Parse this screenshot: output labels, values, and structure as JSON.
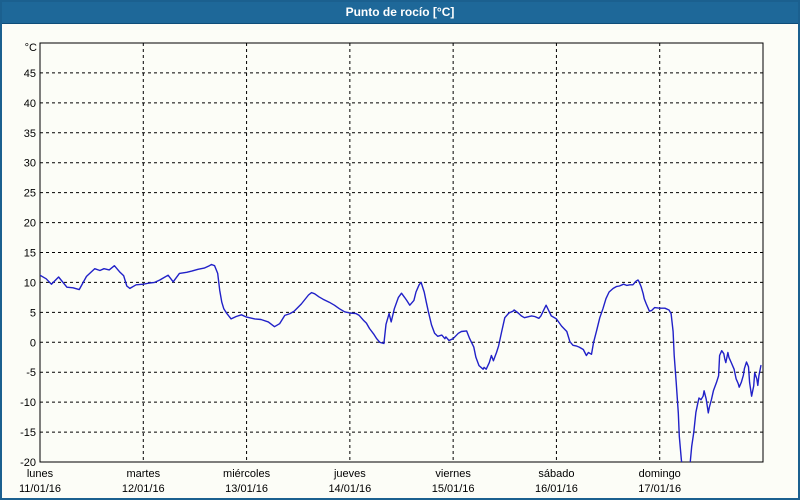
{
  "title": "Punto de rocío [°C]",
  "colors": {
    "titlebar_bg": "#1e6899",
    "titlebar_border": "#0e4d79",
    "window_border": "#1b608f",
    "background": "#fcfdf7",
    "line": "#2121c8",
    "grid": "#000000",
    "frame": "#000000",
    "text": "#000000"
  },
  "chart_data": {
    "type": "line",
    "title": "Punto de rocío [°C]",
    "ylabel": "°C",
    "ylim": [
      -20,
      50
    ],
    "y_ticks": [
      45,
      40,
      35,
      30,
      25,
      20,
      15,
      10,
      5,
      0,
      -5,
      -10,
      -15,
      -20
    ],
    "grid": "dashed",
    "legend_position": "none",
    "x_range_days": 7,
    "x_labels": [
      {
        "day": "lunes",
        "date": "11/01/16"
      },
      {
        "day": "martes",
        "date": "12/01/16"
      },
      {
        "day": "miércoles",
        "date": "13/01/16"
      },
      {
        "day": "jueves",
        "date": "14/01/16"
      },
      {
        "day": "viernes",
        "date": "15/01/16"
      },
      {
        "day": "sábado",
        "date": "16/01/16"
      },
      {
        "day": "domingo",
        "date": "17/01/16"
      }
    ],
    "series": [
      {
        "name": "Punto de rocío [°C]",
        "color": "#2121c8",
        "points": [
          [
            0,
            11.2
          ],
          [
            0.06,
            10.6
          ],
          [
            0.11,
            9.7
          ],
          [
            0.18,
            10.9
          ],
          [
            0.26,
            9.2
          ],
          [
            0.32,
            9.1
          ],
          [
            0.38,
            8.8
          ],
          [
            0.45,
            11.0
          ],
          [
            0.53,
            12.3
          ],
          [
            0.58,
            12.0
          ],
          [
            0.62,
            12.3
          ],
          [
            0.67,
            12.1
          ],
          [
            0.72,
            12.8
          ],
          [
            0.77,
            11.8
          ],
          [
            0.81,
            11.1
          ],
          [
            0.84,
            9.4
          ],
          [
            0.87,
            9.0
          ],
          [
            0.93,
            9.6
          ],
          [
            1.0,
            9.7
          ],
          [
            1.06,
            9.9
          ],
          [
            1.11,
            10.0
          ],
          [
            1.16,
            10.4
          ],
          [
            1.2,
            10.8
          ],
          [
            1.24,
            11.2
          ],
          [
            1.29,
            10.1
          ],
          [
            1.35,
            11.5
          ],
          [
            1.42,
            11.7
          ],
          [
            1.47,
            11.9
          ],
          [
            1.53,
            12.2
          ],
          [
            1.59,
            12.4
          ],
          [
            1.64,
            12.8
          ],
          [
            1.66,
            13.0
          ],
          [
            1.69,
            12.8
          ],
          [
            1.72,
            11.5
          ],
          [
            1.74,
            8.7
          ],
          [
            1.76,
            6.7
          ],
          [
            1.78,
            5.6
          ],
          [
            1.81,
            4.8
          ],
          [
            1.85,
            3.9
          ],
          [
            1.9,
            4.3
          ],
          [
            1.95,
            4.6
          ],
          [
            2.0,
            4.2
          ],
          [
            2.08,
            3.9
          ],
          [
            2.14,
            3.8
          ],
          [
            2.21,
            3.4
          ],
          [
            2.27,
            2.6
          ],
          [
            2.32,
            3.1
          ],
          [
            2.37,
            4.5
          ],
          [
            2.42,
            4.8
          ],
          [
            2.46,
            5.2
          ],
          [
            2.53,
            6.4
          ],
          [
            2.6,
            7.9
          ],
          [
            2.63,
            8.3
          ],
          [
            2.66,
            8.1
          ],
          [
            2.7,
            7.6
          ],
          [
            2.74,
            7.2
          ],
          [
            2.8,
            6.7
          ],
          [
            2.85,
            6.2
          ],
          [
            2.9,
            5.6
          ],
          [
            2.95,
            5.1
          ],
          [
            3.0,
            4.9
          ],
          [
            3.06,
            4.8
          ],
          [
            3.09,
            4.5
          ],
          [
            3.13,
            3.7
          ],
          [
            3.16,
            3.2
          ],
          [
            3.19,
            2.3
          ],
          [
            3.23,
            1.4
          ],
          [
            3.26,
            0.6
          ],
          [
            3.29,
            0.0
          ],
          [
            3.33,
            -0.2
          ],
          [
            3.35,
            3.0
          ],
          [
            3.38,
            4.8
          ],
          [
            3.4,
            3.4
          ],
          [
            3.43,
            5.6
          ],
          [
            3.47,
            7.5
          ],
          [
            3.5,
            8.2
          ],
          [
            3.53,
            7.5
          ],
          [
            3.55,
            7.0
          ],
          [
            3.58,
            6.2
          ],
          [
            3.62,
            7.0
          ],
          [
            3.64,
            8.4
          ],
          [
            3.67,
            9.6
          ],
          [
            3.69,
            10.0
          ],
          [
            3.72,
            8.4
          ],
          [
            3.74,
            6.7
          ],
          [
            3.76,
            5.1
          ],
          [
            3.79,
            2.9
          ],
          [
            3.82,
            1.5
          ],
          [
            3.85,
            1.0
          ],
          [
            3.89,
            1.2
          ],
          [
            3.92,
            0.6
          ],
          [
            3.93,
            0.9
          ],
          [
            3.96,
            0.3
          ],
          [
            4.0,
            0.6
          ],
          [
            4.05,
            1.5
          ],
          [
            4.08,
            1.8
          ],
          [
            4.13,
            1.9
          ],
          [
            4.16,
            0.6
          ],
          [
            4.2,
            -0.8
          ],
          [
            4.22,
            -2.5
          ],
          [
            4.25,
            -3.9
          ],
          [
            4.29,
            -4.5
          ],
          [
            4.3,
            -4.2
          ],
          [
            4.32,
            -4.5
          ],
          [
            4.35,
            -3.4
          ],
          [
            4.37,
            -2.2
          ],
          [
            4.39,
            -3.1
          ],
          [
            4.42,
            -1.7
          ],
          [
            4.44,
            -0.6
          ],
          [
            4.47,
            1.8
          ],
          [
            4.5,
            4.1
          ],
          [
            4.54,
            4.9
          ],
          [
            4.58,
            5.2
          ],
          [
            4.59,
            5.4
          ],
          [
            4.63,
            4.9
          ],
          [
            4.66,
            4.4
          ],
          [
            4.69,
            4.1
          ],
          [
            4.76,
            4.4
          ],
          [
            4.79,
            4.3
          ],
          [
            4.83,
            4.0
          ],
          [
            4.85,
            4.4
          ],
          [
            4.88,
            5.5
          ],
          [
            4.9,
            6.2
          ],
          [
            4.95,
            4.4
          ],
          [
            5.0,
            3.9
          ],
          [
            5.05,
            2.7
          ],
          [
            5.1,
            1.8
          ],
          [
            5.13,
            0.1
          ],
          [
            5.16,
            -0.5
          ],
          [
            5.19,
            -0.6
          ],
          [
            5.22,
            -0.8
          ],
          [
            5.26,
            -1.2
          ],
          [
            5.29,
            -2.2
          ],
          [
            5.31,
            -1.7
          ],
          [
            5.34,
            -2.0
          ],
          [
            5.36,
            0.0
          ],
          [
            5.39,
            2.0
          ],
          [
            5.42,
            4.1
          ],
          [
            5.45,
            5.6
          ],
          [
            5.48,
            7.3
          ],
          [
            5.51,
            8.4
          ],
          [
            5.55,
            9.0
          ],
          [
            5.58,
            9.3
          ],
          [
            5.61,
            9.4
          ],
          [
            5.65,
            9.7
          ],
          [
            5.68,
            9.5
          ],
          [
            5.71,
            9.6
          ],
          [
            5.74,
            9.6
          ],
          [
            5.77,
            10.2
          ],
          [
            5.79,
            10.4
          ],
          [
            5.8,
            10.1
          ],
          [
            5.82,
            9.3
          ],
          [
            5.84,
            8.1
          ],
          [
            5.85,
            7.3
          ],
          [
            5.87,
            6.4
          ],
          [
            5.89,
            5.6
          ],
          [
            5.9,
            5.2
          ],
          [
            5.92,
            5.3
          ],
          [
            5.95,
            5.8
          ],
          [
            6.0,
            5.7
          ],
          [
            6.05,
            5.7
          ],
          [
            6.09,
            5.4
          ],
          [
            6.11,
            4.8
          ],
          [
            6.13,
            1.8
          ],
          [
            6.14,
            -2.2
          ],
          [
            6.16,
            -6.7
          ],
          [
            6.18,
            -11.8
          ],
          [
            6.19,
            -15.7
          ],
          [
            6.21,
            -19.7
          ],
          [
            6.23,
            -21.5
          ],
          [
            6.26,
            -22.5
          ],
          [
            6.29,
            -21.0
          ],
          [
            6.31,
            -17.4
          ],
          [
            6.33,
            -15.0
          ],
          [
            6.34,
            -13.4
          ],
          [
            6.35,
            -11.7
          ],
          [
            6.37,
            -10.1
          ],
          [
            6.38,
            -9.3
          ],
          [
            6.4,
            -9.6
          ],
          [
            6.42,
            -9.0
          ],
          [
            6.43,
            -8.1
          ],
          [
            6.45,
            -9.5
          ],
          [
            6.47,
            -11.8
          ],
          [
            6.48,
            -10.9
          ],
          [
            6.5,
            -9.6
          ],
          [
            6.52,
            -8.1
          ],
          [
            6.53,
            -7.6
          ],
          [
            6.55,
            -6.7
          ],
          [
            6.57,
            -5.6
          ],
          [
            6.58,
            -2.2
          ],
          [
            6.6,
            -1.4
          ],
          [
            6.62,
            -1.9
          ],
          [
            6.63,
            -2.8
          ],
          [
            6.64,
            -3.4
          ],
          [
            6.66,
            -1.7
          ],
          [
            6.67,
            -2.5
          ],
          [
            6.69,
            -3.3
          ],
          [
            6.72,
            -4.5
          ],
          [
            6.73,
            -5.3
          ],
          [
            6.74,
            -6.1
          ],
          [
            6.76,
            -6.9
          ],
          [
            6.77,
            -7.5
          ],
          [
            6.79,
            -6.7
          ],
          [
            6.81,
            -5.5
          ],
          [
            6.82,
            -4.4
          ],
          [
            6.84,
            -3.3
          ],
          [
            6.86,
            -4.1
          ],
          [
            6.87,
            -6.7
          ],
          [
            6.89,
            -9.0
          ],
          [
            6.91,
            -7.3
          ],
          [
            6.92,
            -5.1
          ],
          [
            6.94,
            -6.1
          ],
          [
            6.95,
            -7.2
          ],
          [
            6.96,
            -5.6
          ],
          [
            6.98,
            -3.9
          ]
        ]
      }
    ]
  }
}
